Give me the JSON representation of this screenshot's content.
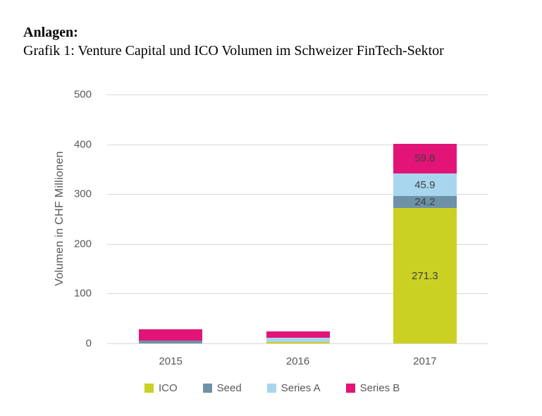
{
  "header": {
    "label": "Anlagen:",
    "caption": "Grafik 1: Venture Capital und ICO Volumen im Schweizer FinTech-Sektor"
  },
  "chart_data": {
    "type": "bar",
    "stacked": true,
    "title": "Grafik 1: Venture Capital und ICO Volumen im Schweizer FinTech-Sektor",
    "categories": [
      "2015",
      "2016",
      "2017"
    ],
    "series": [
      {
        "name": "ICO",
        "color": "#cbd122",
        "values": [
          0,
          3.5,
          271.3
        ],
        "labels": [
          "",
          "",
          "271.3"
        ]
      },
      {
        "name": "Seed",
        "color": "#6d92a8",
        "values": [
          5,
          0,
          24.2
        ],
        "labels": [
          "",
          "",
          "24.2"
        ]
      },
      {
        "name": "Series A",
        "color": "#a8d6ee",
        "values": [
          0,
          8.5,
          45.9
        ],
        "labels": [
          "",
          "",
          "45.9"
        ]
      },
      {
        "name": "Series B",
        "color": "#e31477",
        "values": [
          24,
          12,
          59.8
        ],
        "labels": [
          "",
          "",
          "59.8"
        ]
      }
    ],
    "xlabel": "",
    "ylabel": "Volumen in CHF Millionen",
    "ylim": [
      0,
      500
    ],
    "yticks": [
      0,
      100,
      200,
      300,
      400,
      500
    ],
    "grid": true,
    "legend_position": "bottom",
    "colors": {
      "grid": "#d9d9d9",
      "axis_text": "#595959",
      "value_label": "#3f3f3f",
      "background": "#ffffff"
    }
  }
}
